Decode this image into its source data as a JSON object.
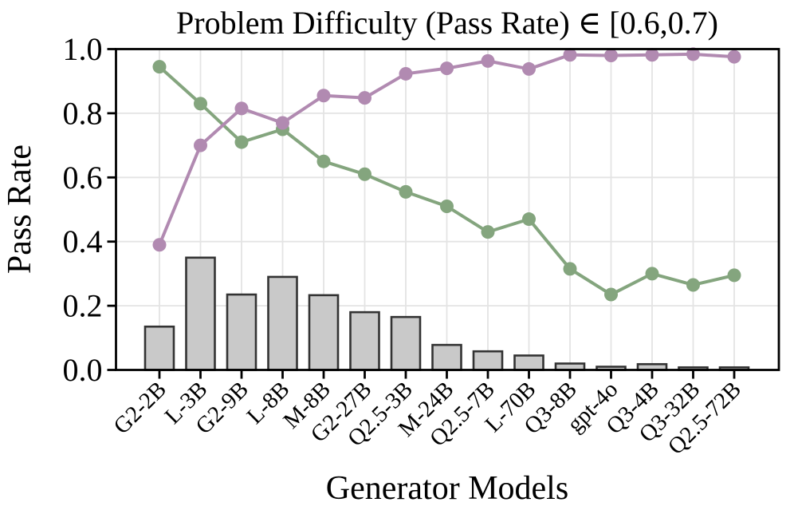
{
  "title": "Problem Difficulty (Pass Rate) ∈ [0.6,0.7)",
  "chart_data": {
    "type": "combo",
    "title": "Problem Difficulty (Pass Rate) ∈ [0.6,0.7)",
    "xlabel": "Generator Models",
    "ylabel": "Pass Rate",
    "ylim": [
      0.0,
      1.0
    ],
    "yticks": [
      0.0,
      0.2,
      0.4,
      0.6,
      0.8,
      1.0
    ],
    "ytick_labels": [
      "0.0",
      "0.2",
      "0.4",
      "0.6",
      "0.8",
      "1.0"
    ],
    "grid": true,
    "legend_position": "none",
    "categories": [
      "G2-2B",
      "L-3B",
      "G2-9B",
      "L-8B",
      "M-8B",
      "G2-27B",
      "Q2.5-3B",
      "M-24B",
      "Q2.5-7B",
      "L-70B",
      "Q3-8B",
      "gpt-4o",
      "Q3-4B",
      "Q3-32B",
      "Q2.5-72B"
    ],
    "series": [
      {
        "name": "pass-rate-bars",
        "type": "bar",
        "color": "#c9c9c9",
        "edge_color": "#333333",
        "values": [
          0.135,
          0.35,
          0.235,
          0.29,
          0.233,
          0.18,
          0.165,
          0.078,
          0.058,
          0.045,
          0.02,
          0.01,
          0.018,
          0.008,
          0.008
        ]
      },
      {
        "name": "green-line",
        "type": "line",
        "color": "#84a57e",
        "values": [
          0.945,
          0.83,
          0.71,
          0.75,
          0.65,
          0.61,
          0.555,
          0.51,
          0.43,
          0.47,
          0.315,
          0.235,
          0.3,
          0.265,
          0.295
        ]
      },
      {
        "name": "purple-line",
        "type": "line",
        "color": "#b18ab1",
        "values": [
          0.39,
          0.7,
          0.815,
          0.77,
          0.855,
          0.848,
          0.923,
          0.94,
          0.963,
          0.938,
          0.982,
          0.98,
          0.982,
          0.984,
          0.976
        ]
      }
    ],
    "style": {
      "grid_color": "#e4e4e4",
      "spine_color": "#000000",
      "background": "#ffffff"
    }
  }
}
